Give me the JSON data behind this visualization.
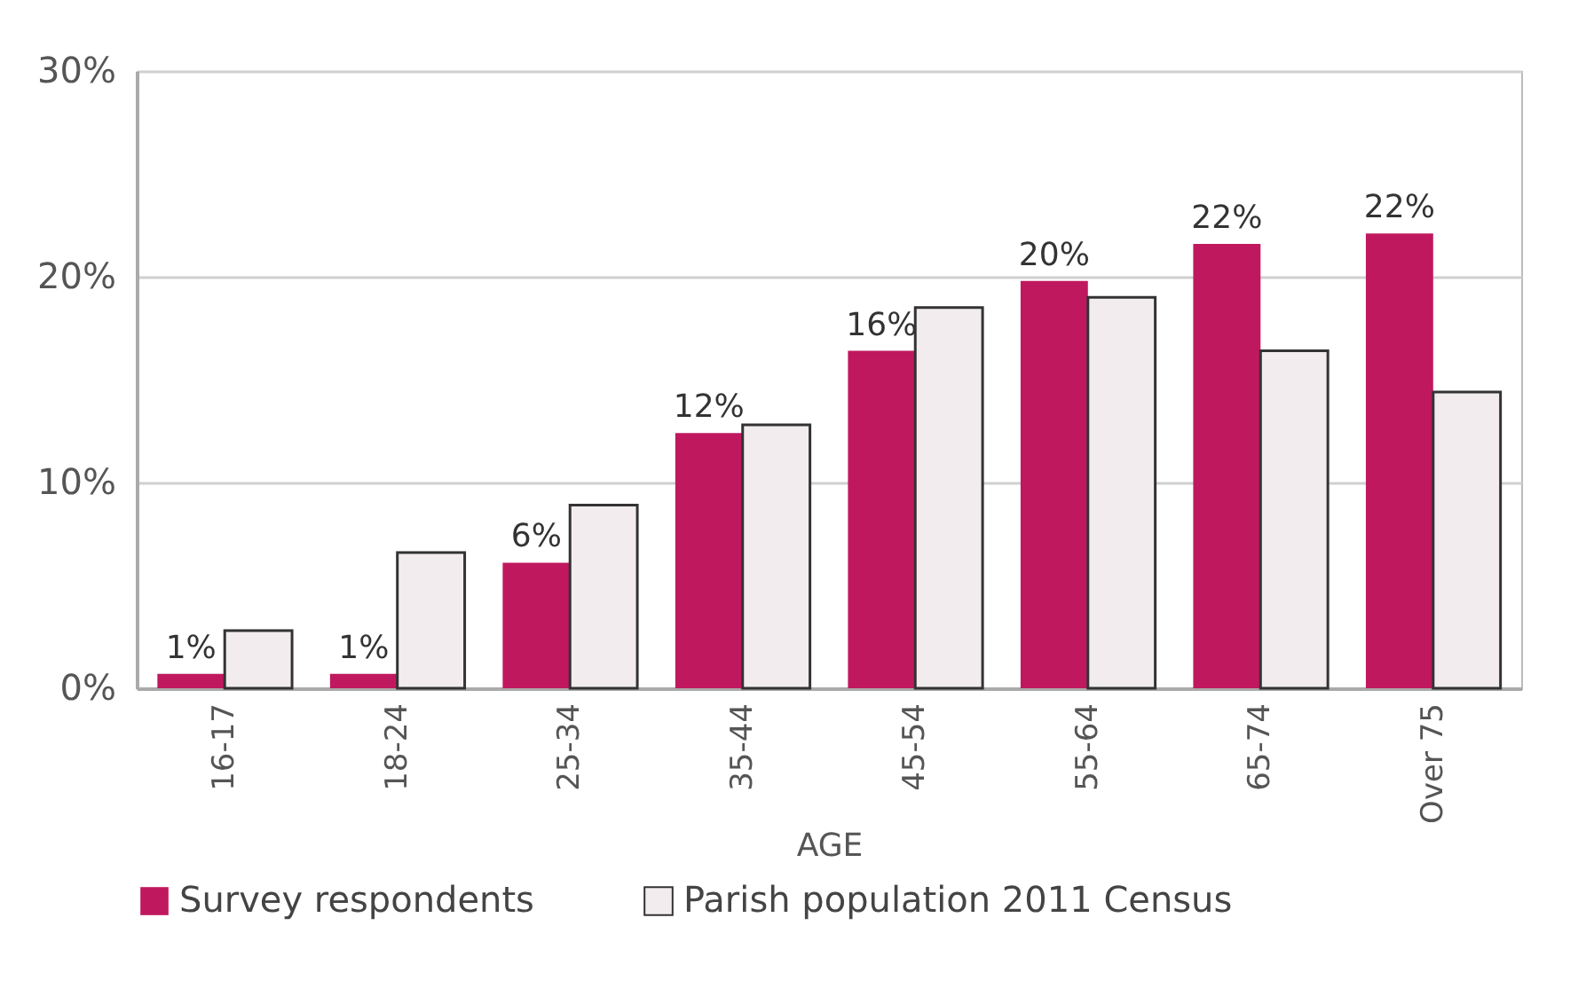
{
  "chart_data": {
    "type": "bar",
    "xlabel": "AGE",
    "categories": [
      "16-17",
      "18-24",
      "25-34",
      "35-44",
      "45-54",
      "55-64",
      "65-74",
      "Over 75"
    ],
    "series": [
      {
        "name": "Survey respondents",
        "color": "#c0185f",
        "values": [
          0.7,
          0.7,
          6.1,
          12.4,
          16.4,
          19.8,
          21.6,
          22.1
        ],
        "value_labels": [
          "1%",
          "1%",
          "6%",
          "12%",
          "16%",
          "20%",
          "22%",
          "22%"
        ]
      },
      {
        "name": "Parish population 2011 Census",
        "color": "#f2ecee",
        "values": [
          2.8,
          6.6,
          8.9,
          12.8,
          18.5,
          19.0,
          16.4,
          14.4
        ]
      }
    ],
    "ylim": [
      0,
      30
    ],
    "yticks": [
      {
        "value": 0,
        "label": "0%"
      },
      {
        "value": 10,
        "label": "10%"
      },
      {
        "value": 20,
        "label": "20%"
      },
      {
        "value": 30,
        "label": "30%"
      }
    ],
    "grid": "y",
    "legend": "bottom"
  }
}
